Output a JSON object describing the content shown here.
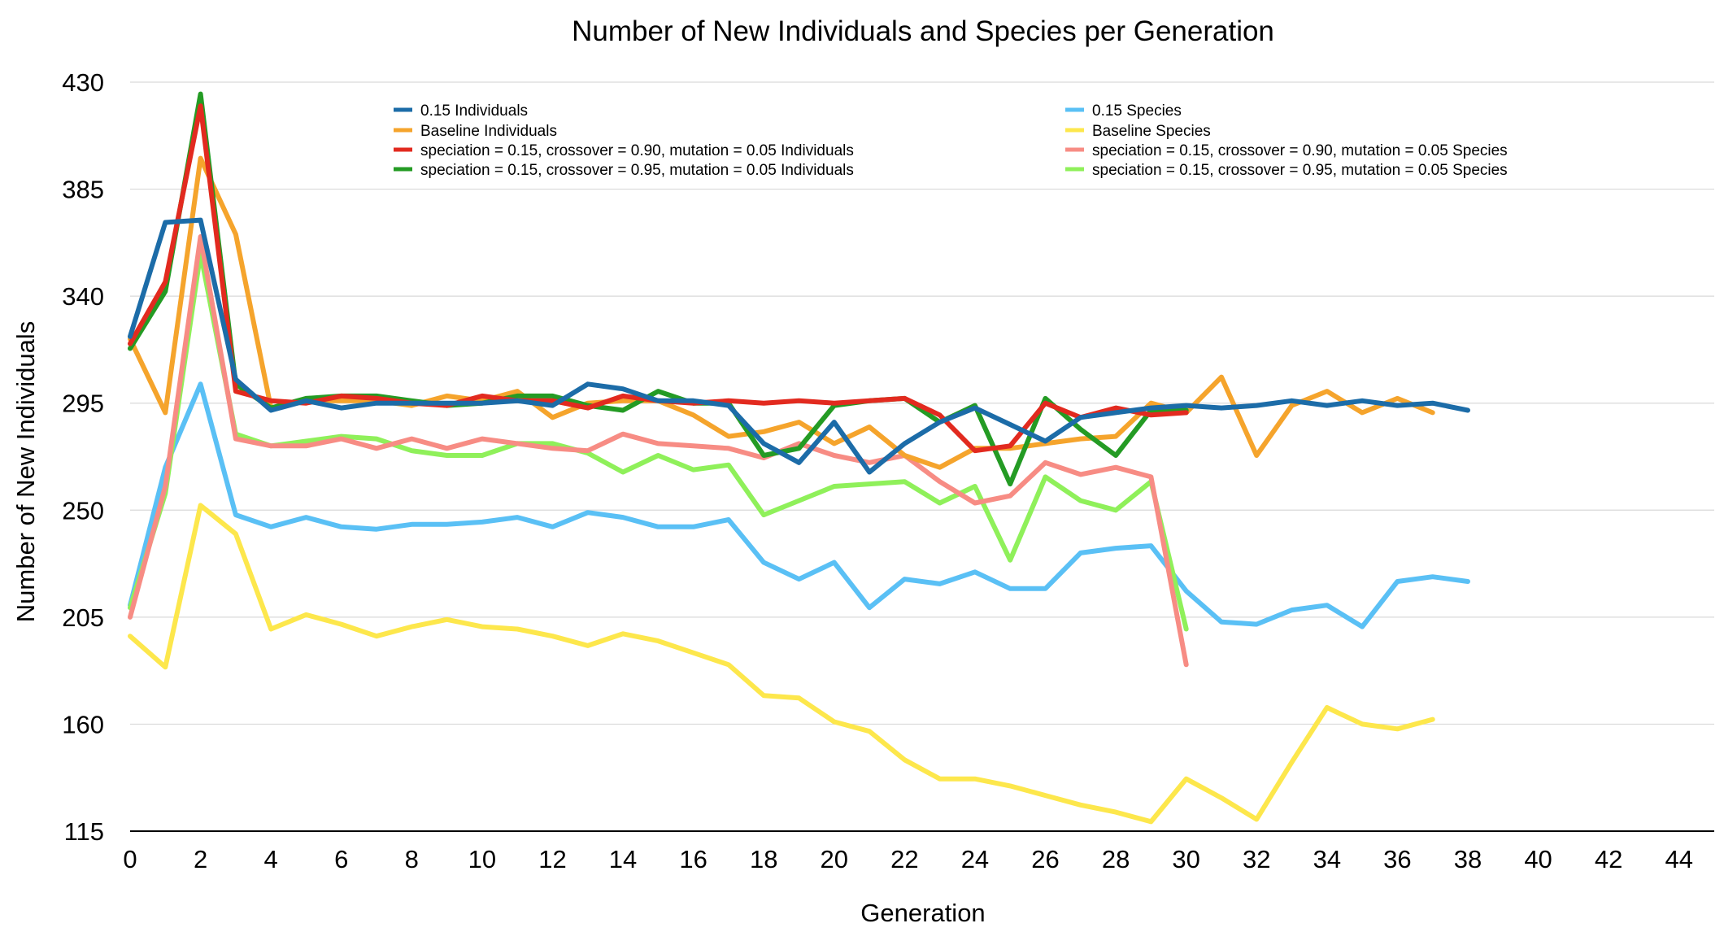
{
  "chart_data": {
    "type": "line",
    "title": "Number of New Individuals and Species per Generation",
    "xlabel": "Generation",
    "ylabel": "Number of New Individuals",
    "xlim": [
      0,
      45
    ],
    "ylim": [
      115,
      430
    ],
    "x_ticks": [
      0,
      2,
      4,
      6,
      8,
      10,
      12,
      14,
      16,
      18,
      20,
      22,
      24,
      26,
      28,
      30,
      32,
      34,
      36,
      38,
      40,
      42,
      44
    ],
    "y_ticks": [
      115,
      160,
      205,
      250,
      295,
      340,
      385,
      430
    ],
    "grid": "horizontal",
    "legend_position": "top",
    "series": [
      {
        "name": "Baseline Species",
        "color": "#fde74c",
        "values": [
          197,
          184,
          252,
          240,
          200,
          206,
          202,
          197,
          201,
          204,
          201,
          200,
          197,
          193,
          198,
          195,
          190,
          185,
          172,
          171,
          161,
          157,
          145,
          137,
          137,
          134,
          130,
          126,
          123,
          119,
          137,
          129,
          120,
          144,
          167,
          160,
          158,
          162
        ]
      },
      {
        "name": "0.15 Species",
        "color": "#5ac0f5",
        "values": [
          210,
          268,
          303,
          248,
          243,
          247,
          243,
          242,
          244,
          244,
          245,
          247,
          243,
          249,
          247,
          243,
          243,
          246,
          228,
          221,
          228,
          209,
          221,
          219,
          224,
          217,
          217,
          232,
          234,
          235,
          216,
          203,
          202,
          208,
          210,
          201,
          220,
          222,
          220
        ]
      },
      {
        "name": "speciation = 0.15, crossover = 0.95, mutation = 0.05 Species",
        "color": "#8ff05a",
        "values": [
          209,
          257,
          358,
          282,
          277,
          279,
          281,
          280,
          275,
          273,
          273,
          278,
          278,
          274,
          266,
          273,
          267,
          269,
          248,
          254,
          260,
          261,
          262,
          253,
          260,
          229,
          264,
          254,
          250,
          262,
          200
        ]
      },
      {
        "name": "speciation = 0.15, crossover = 0.90, mutation = 0.05 Species",
        "color": "#f78c84",
        "values": [
          205,
          260,
          365,
          280,
          277,
          277,
          280,
          276,
          280,
          276,
          280,
          278,
          276,
          275,
          282,
          278,
          277,
          276,
          272,
          278,
          273,
          270,
          273,
          262,
          253,
          256,
          270,
          265,
          268,
          264,
          185
        ]
      },
      {
        "name": "Baseline Individuals",
        "color": "#f5a42c",
        "values": [
          322,
          291,
          398,
          366,
          293,
          296,
          296,
          296,
          294,
          298,
          296,
          300,
          289,
          295,
          296,
          296,
          290,
          281,
          283,
          287,
          278,
          285,
          273,
          268,
          276,
          276,
          278,
          280,
          281,
          295,
          291,
          306,
          273,
          294,
          300,
          291,
          297,
          291
        ]
      },
      {
        "name": "speciation = 0.15, crossover = 0.95, mutation = 0.05 Individuals",
        "color": "#249b24",
        "values": [
          318,
          342,
          425,
          303,
          293,
          297,
          298,
          298,
          296,
          294,
          295,
          298,
          298,
          294,
          292,
          300,
          295,
          295,
          273,
          276,
          294,
          296,
          297,
          287,
          294,
          261,
          297,
          284,
          273,
          292,
          292
        ]
      },
      {
        "name": "speciation = 0.15, crossover = 0.90, mutation = 0.05 Individuals",
        "color": "#e22a1f",
        "values": [
          320,
          346,
          420,
          300,
          296,
          295,
          298,
          297,
          295,
          294,
          298,
          296,
          296,
          293,
          298,
          296,
          295,
          296,
          295,
          296,
          295,
          296,
          297,
          290,
          275,
          277,
          295,
          289,
          293,
          290,
          291
        ]
      },
      {
        "name": "0.15 Individuals",
        "color": "#1c6ca8",
        "values": [
          323,
          371,
          372,
          305,
          292,
          296,
          293,
          295,
          295,
          295,
          295,
          296,
          294,
          303,
          301,
          296,
          296,
          294,
          278,
          270,
          287,
          266,
          278,
          287,
          293,
          286,
          279,
          289,
          291,
          293,
          294,
          293,
          294,
          296,
          294,
          296,
          294,
          295,
          292
        ]
      }
    ],
    "legend": [
      {
        "name": "0.15 Individuals",
        "color": "#1c6ca8"
      },
      {
        "name": "Baseline Individuals",
        "color": "#f5a42c"
      },
      {
        "name": "speciation = 0.15, crossover = 0.90, mutation = 0.05 Individuals",
        "color": "#e22a1f"
      },
      {
        "name": "speciation = 0.15, crossover = 0.95, mutation = 0.05 Individuals",
        "color": "#249b24"
      },
      {
        "name": "0.15 Species",
        "color": "#5ac0f5"
      },
      {
        "name": "Baseline Species",
        "color": "#fde74c"
      },
      {
        "name": "speciation = 0.15, crossover = 0.90, mutation = 0.05 Species",
        "color": "#f78c84"
      },
      {
        "name": "speciation = 0.15, crossover = 0.95, mutation = 0.05 Species",
        "color": "#8ff05a"
      }
    ]
  }
}
